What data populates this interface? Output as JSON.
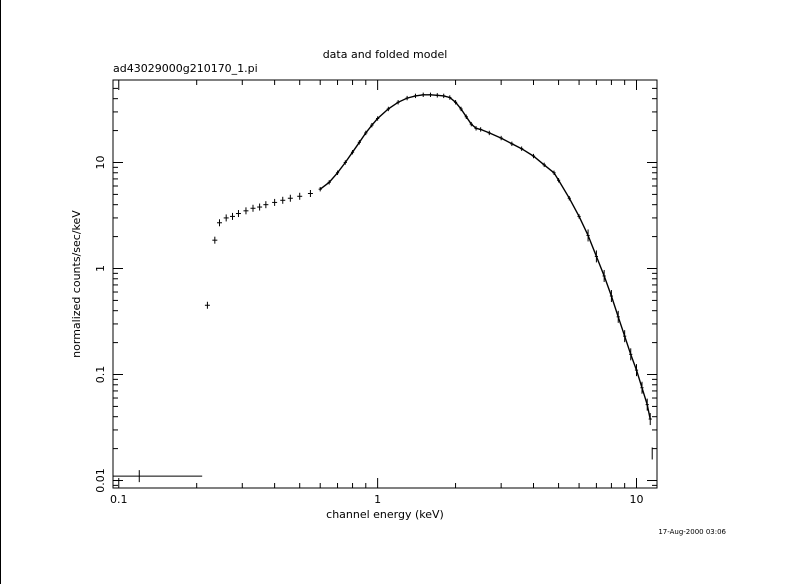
{
  "chart_data": {
    "type": "scatter",
    "title": "data and folded model",
    "subtitle": "ad43029000g210170_1.pi",
    "xlabel": "channel energy (keV)",
    "ylabel": "normalized counts/sec/keV",
    "xscale": "log",
    "yscale": "log",
    "xlim": [
      0.095,
      12.0
    ],
    "ylim": [
      0.0085,
      60.0
    ],
    "xticks": [
      {
        "value": 0.1,
        "label": "0.1"
      },
      {
        "value": 1,
        "label": "1"
      },
      {
        "value": 10,
        "label": "10"
      }
    ],
    "yticks": [
      {
        "value": 0.01,
        "label": "0.01"
      },
      {
        "value": 0.1,
        "label": "0.1"
      },
      {
        "value": 1,
        "label": "1"
      },
      {
        "value": 10,
        "label": "10"
      }
    ],
    "grid": false,
    "timestamp": "17-Aug-2000 03:06",
    "series": [
      {
        "points": [
          [
            0.22,
            0.45
          ],
          [
            0.235,
            1.85
          ],
          [
            0.245,
            2.7
          ],
          [
            0.26,
            3.0
          ],
          [
            0.275,
            3.1
          ],
          [
            0.29,
            3.3
          ],
          [
            0.31,
            3.5
          ],
          [
            0.33,
            3.7
          ],
          [
            0.35,
            3.8
          ],
          [
            0.37,
            4.0
          ],
          [
            0.4,
            4.2
          ],
          [
            0.43,
            4.4
          ],
          [
            0.46,
            4.6
          ],
          [
            0.5,
            4.8
          ],
          [
            0.55,
            5.1
          ],
          [
            0.6,
            5.6
          ],
          [
            0.65,
            6.5
          ],
          [
            0.7,
            8.0
          ],
          [
            0.75,
            10.0
          ],
          [
            0.8,
            12.5
          ],
          [
            0.85,
            15.5
          ],
          [
            0.9,
            19.0
          ],
          [
            0.95,
            22.5
          ],
          [
            1.0,
            26.0
          ],
          [
            1.1,
            32.0
          ],
          [
            1.2,
            37.0
          ],
          [
            1.3,
            40.5
          ],
          [
            1.4,
            42.5
          ],
          [
            1.5,
            43.5
          ],
          [
            1.6,
            43.5
          ],
          [
            1.7,
            43.0
          ],
          [
            1.8,
            42.5
          ],
          [
            1.9,
            41.0
          ],
          [
            2.0,
            37.0
          ],
          [
            2.1,
            32.0
          ],
          [
            2.2,
            27.0
          ],
          [
            2.3,
            23.0
          ],
          [
            2.4,
            21.0
          ],
          [
            2.5,
            20.5
          ],
          [
            2.7,
            19.0
          ],
          [
            3.0,
            17.0
          ],
          [
            3.3,
            15.0
          ],
          [
            3.6,
            13.5
          ],
          [
            4.0,
            11.5
          ],
          [
            4.4,
            9.5
          ],
          [
            4.8,
            8.0
          ],
          [
            5.0,
            6.8
          ],
          [
            5.5,
            4.6
          ],
          [
            6.0,
            3.1
          ],
          [
            6.5,
            2.05
          ],
          [
            7.0,
            1.3
          ],
          [
            7.5,
            0.85
          ],
          [
            8.0,
            0.55
          ],
          [
            8.5,
            0.35
          ],
          [
            9.0,
            0.23
          ],
          [
            9.5,
            0.155
          ],
          [
            10.0,
            0.11
          ],
          [
            10.5,
            0.075
          ],
          [
            11.0,
            0.052
          ],
          [
            11.3,
            0.038
          ]
        ]
      },
      {
        "points": [
          [
            0.12,
            0.011
          ],
          [
            11.5,
            0.018
          ]
        ]
      }
    ]
  }
}
